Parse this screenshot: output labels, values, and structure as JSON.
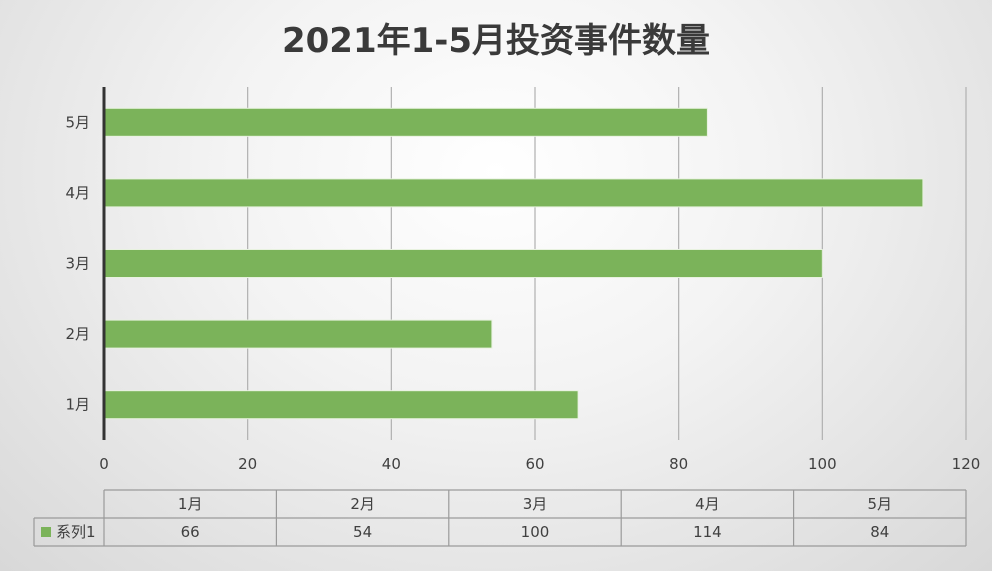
{
  "chart_data": {
    "type": "bar",
    "orientation": "horizontal",
    "title": "2021年1-5月投资事件数量",
    "categories": [
      "1月",
      "2月",
      "3月",
      "4月",
      "5月"
    ],
    "series": [
      {
        "name": "系列1",
        "values": [
          66,
          54,
          100,
          114,
          84
        ]
      }
    ],
    "xlim": [
      0,
      120
    ],
    "x_ticks": [
      "0",
      "20",
      "40",
      "60",
      "80",
      "100",
      "120"
    ],
    "grid": true,
    "data_table": {
      "header": [
        "1月",
        "2月",
        "3月",
        "4月",
        "5月"
      ],
      "rows": [
        {
          "label": "系列1",
          "values": [
            "66",
            "54",
            "100",
            "114",
            "84"
          ]
        }
      ]
    },
    "colors": {
      "bar": "#7bb35a",
      "bar_stroke": "#e8f2df",
      "axis": "#333333",
      "grid": "#b0b0b0"
    }
  }
}
